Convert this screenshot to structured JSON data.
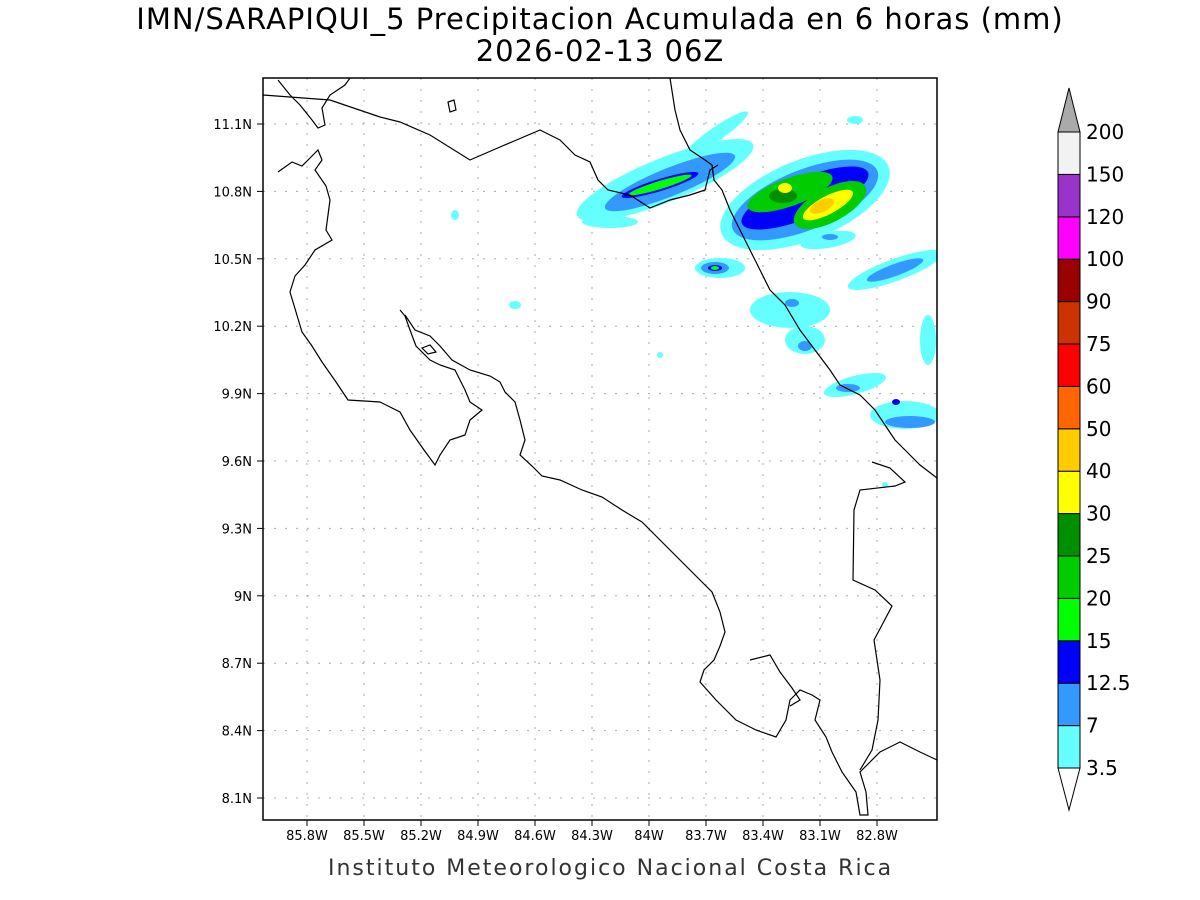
{
  "title": {
    "line1": "IMN/SARAPIQUI_5 Precipitacion Acumulada en 6 horas (mm)",
    "line2": "2026-02-13 06Z"
  },
  "footer": "Instituto Meteorologico Nacional Costa Rica",
  "axes": {
    "lon_labels": [
      "85.8W",
      "85.5W",
      "85.2W",
      "84.9W",
      "84.6W",
      "84.3W",
      "84W",
      "83.7W",
      "83.4W",
      "83.1W",
      "82.8W"
    ],
    "lat_labels": [
      "11.1N",
      "10.8N",
      "10.5N",
      "10.2N",
      "9.9N",
      "9.6N",
      "9.3N",
      "9N",
      "8.7N",
      "8.4N",
      "8.1N"
    ]
  },
  "colorbar": {
    "levels": [
      "3.5",
      "7",
      "12.5",
      "15",
      "20",
      "25",
      "30",
      "40",
      "50",
      "60",
      "75",
      "90",
      "100",
      "120",
      "150",
      "200"
    ],
    "colors": [
      "#66ffff",
      "#3399ff",
      "#0000ff",
      "#00ff00",
      "#00cc00",
      "#008f00",
      "#ffff00",
      "#ffcc00",
      "#ff6600",
      "#ff0000",
      "#cc3300",
      "#990000",
      "#ff00ff",
      "#9933cc",
      "#f2f2f2"
    ],
    "over_color": "#aaaaaa",
    "under_color": "#ffffff"
  }
}
